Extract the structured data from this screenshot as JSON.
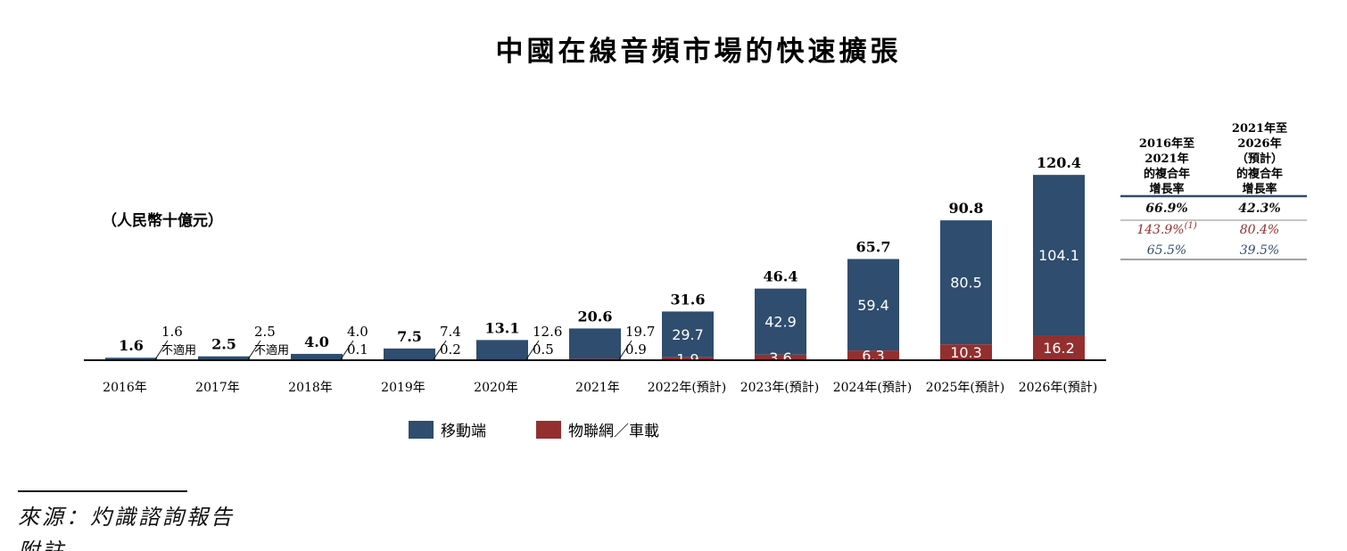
{
  "chart_data": {
    "type": "bar",
    "stacked": true,
    "title": "中國在線音頻市場的快速擴張",
    "unit_label": "（人民幣十億元）",
    "categories": [
      "2016年",
      "2017年",
      "2018年",
      "2019年",
      "2020年",
      "2021年",
      "2022年(預計)",
      "2023年(預計)",
      "2024年(預計)",
      "2025年(預計)",
      "2026年(預計)"
    ],
    "totals": [
      1.6,
      2.5,
      4.0,
      7.5,
      13.1,
      20.6,
      31.6,
      46.4,
      65.7,
      90.8,
      120.4
    ],
    "total_labels": [
      "1.6",
      "2.5",
      "4.0",
      "7.5",
      "13.1",
      "20.6",
      "31.6",
      "46.4",
      "65.7",
      "90.8",
      "120.4"
    ],
    "series": [
      {
        "name": "移動端",
        "color": "#2f4d6e",
        "values": [
          1.6,
          2.5,
          4.0,
          7.4,
          12.6,
          19.7,
          29.7,
          42.9,
          59.4,
          80.5,
          104.1
        ],
        "labels": [
          "1.6",
          "2.5",
          "4.0",
          "7.4",
          "12.6",
          "19.7",
          "29.7",
          "42.9",
          "59.4",
          "80.5",
          "104.1"
        ]
      },
      {
        "name": "物聯網／車載",
        "color": "#93302f",
        "values": [
          null,
          null,
          0.1,
          0.2,
          0.5,
          0.9,
          1.9,
          3.6,
          6.3,
          10.3,
          16.2
        ],
        "labels": [
          "不適用",
          "不適用",
          "0.1",
          "0.2",
          "0.5",
          "0.9",
          "1.9",
          "3.6",
          "6.3",
          "10.3",
          "16.2"
        ]
      }
    ],
    "side_label_count": 6,
    "ylim": [
      0,
      120.4
    ],
    "grid": false,
    "legend_position": "bottom-center",
    "cagr_table": {
      "headers": [
        "2016年至\n2021年\n的複合年\n增長率",
        "2021年至\n2026年\n（預計）\n的複合年\n增長率"
      ],
      "rows": [
        {
          "values": [
            "66.9%",
            "42.3%"
          ],
          "color": "#111111",
          "style": "total"
        },
        {
          "values": [
            "143.9%",
            "80.4%"
          ],
          "footnote": "(1)",
          "color": "#93302f",
          "style": "iot"
        },
        {
          "values": [
            "65.5%",
            "39.5%"
          ],
          "color": "#2f4d6e",
          "style": "mobile"
        }
      ]
    }
  },
  "source_text": "來源：灼識諮詢報告",
  "cut_text": "附註"
}
